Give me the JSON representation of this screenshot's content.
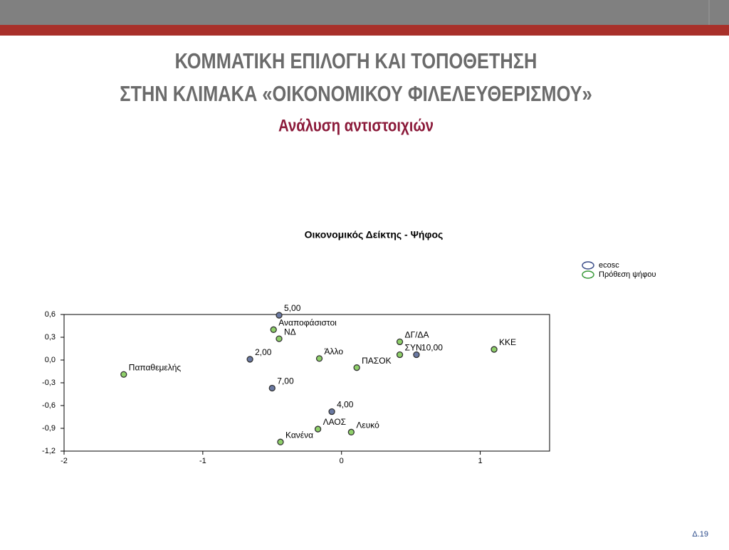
{
  "slide": {
    "title_lines": [
      "ΚΟΜΜΑΤΙΚΗ ΕΠΙΛΟΓΗ ΚΑΙ ΤΟΠΟΘΕΤΗΣΗ",
      "ΣΤΗΝ ΚΛΙΜΑΚΑ «ΟΙΚΟΝΟΜΙΚΟΥ ΦΙΛΕΛΕΥΘΕΡΙΣΜΟΥ»"
    ],
    "subtitle": "Ανάλυση αντιστοιχιών",
    "page_number": "Δ.19"
  },
  "chart_data": {
    "type": "scatter",
    "title": "Οικονομικός Δείκτης - Ψήφος",
    "xlim": [
      -2,
      1.5
    ],
    "xticks": [
      -2,
      -1,
      0,
      1
    ],
    "ylim": [
      -1.2,
      0.6
    ],
    "yticks": [
      {
        "value": 0.6,
        "label": "0,6"
      },
      {
        "value": 0.3,
        "label": "0,3"
      },
      {
        "value": 0.0,
        "label": "0,0"
      },
      {
        "value": -0.3,
        "label": "-0,3"
      },
      {
        "value": -0.6,
        "label": "-0,6"
      },
      {
        "value": -0.9,
        "label": "-0,9"
      },
      {
        "value": -1.2,
        "label": "-1,2"
      }
    ],
    "legend": "upper right",
    "series": [
      {
        "name": "ecosc",
        "color": "#6b7aa3",
        "x": [
          -0.45,
          -0.66,
          -0.5,
          -0.07,
          0.54
        ],
        "values": [
          0.59,
          0.01,
          -0.37,
          -0.68,
          0.07
        ],
        "point_labels": [
          "5,00",
          "2,00",
          "7,00",
          "4,00",
          "10,00"
        ]
      },
      {
        "name": "Πρόθεση ψήφου",
        "color": "#8fd06a",
        "x": [
          -0.49,
          -0.45,
          -0.16,
          0.42,
          0.42,
          1.1,
          0.11,
          -1.57,
          -0.17,
          0.07,
          -0.44
        ],
        "values": [
          0.4,
          0.28,
          0.02,
          0.24,
          0.07,
          0.14,
          -0.1,
          -0.19,
          -0.91,
          -0.95,
          -1.08
        ],
        "point_labels": [
          "Αναποφάσιστοι",
          "ΝΔ",
          "Άλλο",
          "ΔΓ/ΔΑ",
          "ΣΥΝ",
          "ΚΚΕ",
          "ΠΑΣΟΚ",
          "Παπαθεμελής",
          "ΛΑΟΣ",
          "Λευκό",
          "Κανένα"
        ]
      }
    ]
  }
}
